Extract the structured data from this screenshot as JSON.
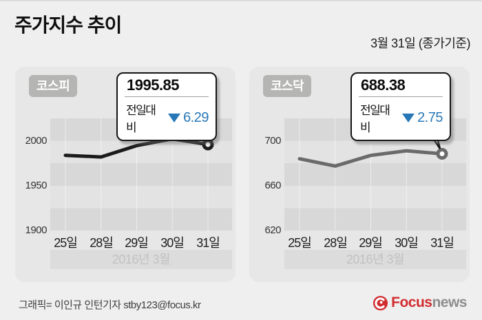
{
  "header": {
    "title": "주가지수 추이",
    "date_note": "3월 31일 (종가기준)"
  },
  "colors": {
    "down_blue": "#2878b8",
    "logo_red": "#d22c2f",
    "logo_news_gray": "#8d8d8d"
  },
  "chart_data": [
    {
      "type": "line",
      "title": "코스피",
      "x": [
        "25일",
        "28일",
        "29일",
        "30일",
        "31일"
      ],
      "values": [
        1983.8,
        1982.0,
        1994.6,
        2002.14,
        1995.85
      ],
      "yticks": [
        2000,
        1950,
        1900
      ],
      "ylim": [
        1900,
        2025
      ],
      "xlabel": "2016년 3월",
      "line_color": "#1b1b1b",
      "grid": "horizontal-bands",
      "legend": "none",
      "callout": {
        "value": "1995.85",
        "change_label": "전일대비",
        "direction": "down",
        "change": "6.29"
      }
    },
    {
      "type": "line",
      "title": "코스닥",
      "x": [
        "25일",
        "28일",
        "29일",
        "30일",
        "31일"
      ],
      "values": [
        684.0,
        677.5,
        687.0,
        691.13,
        688.38
      ],
      "yticks": [
        700,
        660,
        620
      ],
      "ylim": [
        620,
        720
      ],
      "xlabel": "2016년 3월",
      "line_color": "#6a6a6a",
      "grid": "horizontal-bands",
      "legend": "none",
      "callout": {
        "value": "688.38",
        "change_label": "전일대비",
        "direction": "down",
        "change": "2.75"
      }
    }
  ],
  "footer": {
    "credit": "그래픽= 이인규 인턴기자 stby123@focus.kr",
    "logo": {
      "brand": "Focus",
      "suffix": "news"
    }
  }
}
